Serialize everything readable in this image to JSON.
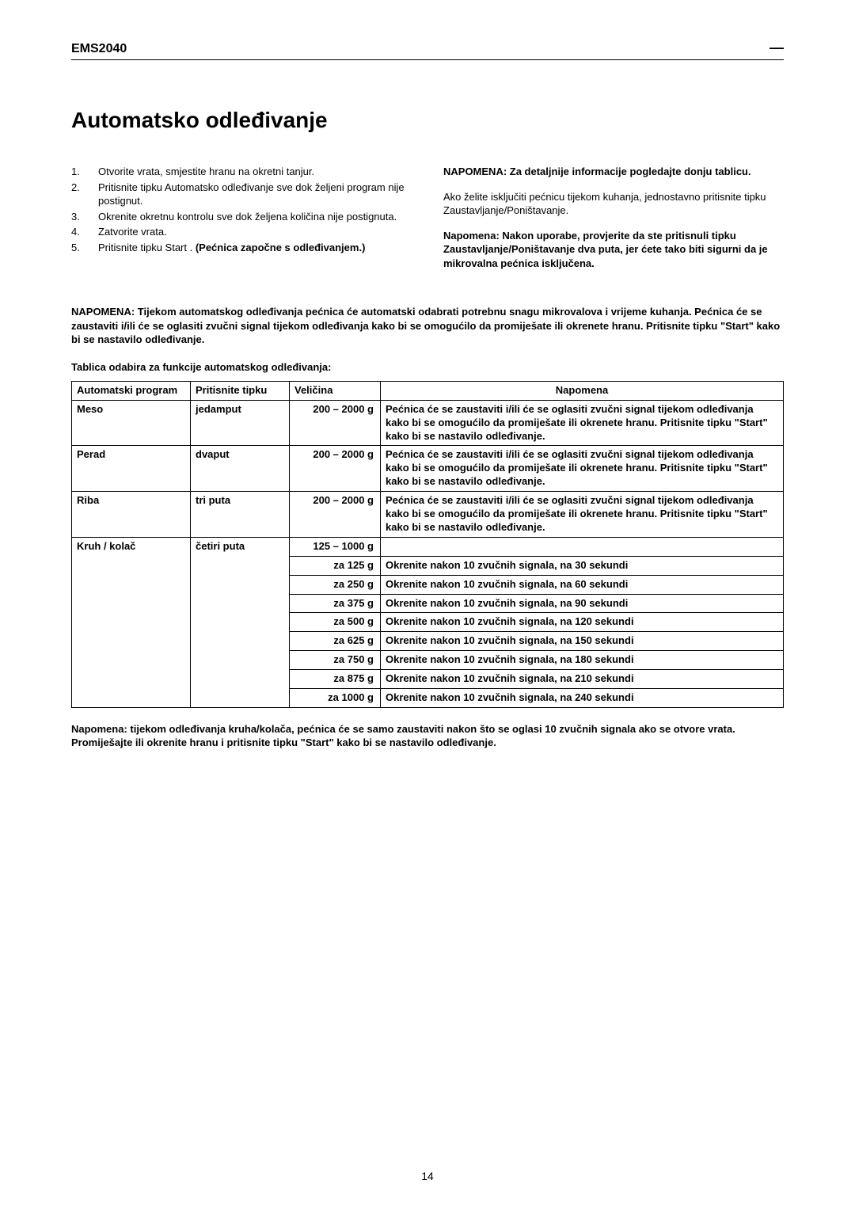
{
  "header": {
    "model": "EMS2040",
    "dash": "—"
  },
  "heading": "Automatsko odleđivanje",
  "steps": [
    {
      "num": "1.",
      "text": "Otvorite vrata, smjestite hranu na okretni tanjur."
    },
    {
      "num": "2.",
      "text": "Pritisnite tipku Automatsko odleđivanje sve dok željeni program nije postignut."
    },
    {
      "num": "3.",
      "text": "Okrenite okretnu kontrolu sve dok željena količina nije postignuta."
    },
    {
      "num": "4.",
      "text": "Zatvorite vrata."
    },
    {
      "num": "5.",
      "text_pre": "Pritisnite tipku Start . ",
      "text_bold": "(Pećnica započne s odleđivanjem.)"
    }
  ],
  "right": {
    "note1_bold": "NAPOMENA: Za detaljnije informacije pogledajte donju tablicu.",
    "note2": "Ako želite isključiti pećnicu tijekom kuhanja, jednostavno pritisnite tipku Zaustavljanje/Poništavanje.",
    "note3_bold": "Napomena: Nakon uporabe, provjerite da ste pritisnuli tipku Zaustavljanje/Poništavanje dva puta, jer ćete tako biti sigurni da je mikrovalna pećnica isključena."
  },
  "body_note": "NAPOMENA: Tijekom automatskog odleđivanja pećnica će automatski odabrati potrebnu snagu mikrovalova i vrijeme kuhanja. Pećnica će se zaustaviti i/ili će se oglasiti zvučni signal tijekom odleđivanja kako bi se omogućilo da promiješate ili okrenete hranu. Pritisnite tipku \"Start\" kako bi se nastavilo odleđivanje.",
  "table_caption": "Tablica odabira za funkcije automatskog odleđivanja:",
  "table": {
    "headers": {
      "prog": "Automatski program",
      "press": "Pritisnite tipku",
      "size": "Veličina",
      "note": "Napomena"
    },
    "rows": [
      {
        "prog": "Meso",
        "press": "jedamput",
        "size": "200 – 2000 g",
        "note": "Pećnica će se zaustaviti i/ili će se oglasiti zvučni signal tijekom odleđivanja kako bi se omogućilo da promiješate ili okrenete hranu. Pritisnite tipku \"Start\" kako bi se nastavilo odleđivanje."
      },
      {
        "prog": "Perad",
        "press": "dvaput",
        "size": "200 – 2000 g",
        "note": "Pećnica će se zaustaviti i/ili će se oglasiti zvučni signal tijekom odleđivanja kako bi se omogućilo da promiješate ili okrenete hranu. Pritisnite tipku \"Start\" kako bi se nastavilo odleđivanje."
      },
      {
        "prog": "Riba",
        "press": "tri puta",
        "size": "200 – 2000 g",
        "note": "Pećnica će se zaustaviti i/ili će se oglasiti zvučni signal tijekom odleđivanja kako bi se omogućilo da promiješate ili okrenete hranu. Pritisnite tipku \"Start\" kako bi se nastavilo odleđivanje."
      },
      {
        "prog": "Kruh / kolač",
        "press": "četiri puta",
        "size": "125 – 1000 g",
        "note": ""
      }
    ],
    "sub_rows": [
      {
        "size": "za 125 g",
        "note": "Okrenite nakon 10 zvučnih signala, na 30 sekundi"
      },
      {
        "size": "za 250 g",
        "note": "Okrenite nakon 10 zvučnih signala, na 60 sekundi"
      },
      {
        "size": "za 375 g",
        "note": "Okrenite nakon 10 zvučnih signala, na 90 sekundi"
      },
      {
        "size": "za 500 g",
        "note": "Okrenite nakon 10 zvučnih signala, na 120 sekundi"
      },
      {
        "size": "za 625 g",
        "note": "Okrenite nakon 10 zvučnih signala, na 150 sekundi"
      },
      {
        "size": "za 750 g",
        "note": "Okrenite nakon 10 zvučnih signala, na 180 sekundi"
      },
      {
        "size": "za 875 g",
        "note": "Okrenite nakon 10 zvučnih signala, na 210 sekundi"
      },
      {
        "size": "za 1000 g",
        "note": "Okrenite nakon 10 zvučnih signala, na 240 sekundi"
      }
    ]
  },
  "footnote": "Napomena: tijekom odleđivanja kruha/kolača, pećnica će se samo zaustaviti nakon što se oglasi 10 zvučnih signala ako se otvore vrata. Promiješajte ili okrenite hranu i pritisnite tipku \"Start\" kako bi se nastavilo odleđivanje.",
  "page_number": "14"
}
